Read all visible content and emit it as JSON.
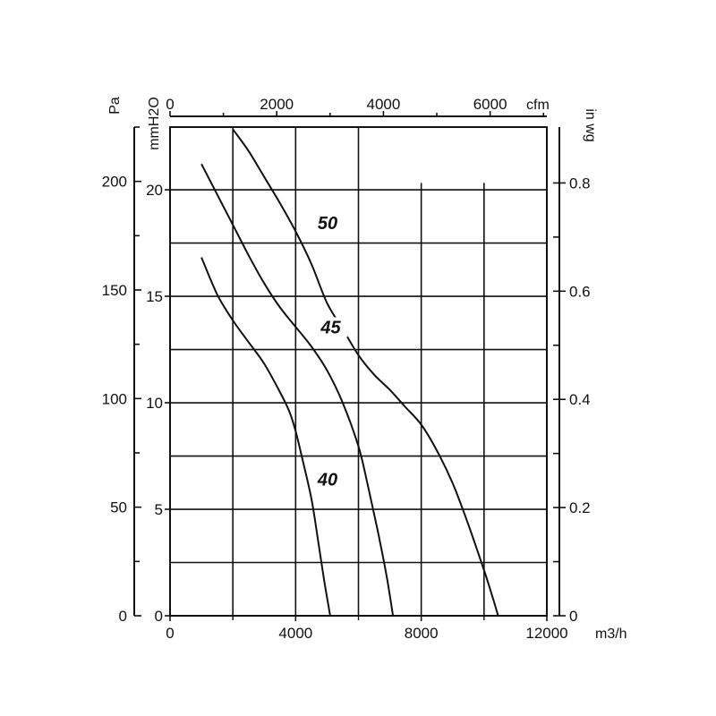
{
  "chart_data": {
    "type": "line",
    "title": "",
    "x_axis_bottom": {
      "unit": "m3/h",
      "range": [
        0,
        12000
      ],
      "ticks": [
        "0",
        "4000",
        "8000",
        "12000"
      ]
    },
    "x_axis_top": {
      "unit": "cfm",
      "range": [
        0,
        7063
      ],
      "ticks": [
        "0",
        "2000",
        "4000",
        "6000"
      ]
    },
    "y_axis_left_pa": {
      "unit": "Pa",
      "range": [
        0,
        225
      ],
      "ticks": [
        "0",
        "50",
        "100",
        "150",
        "200"
      ]
    },
    "y_axis_left_mmh2o": {
      "unit": "mmH2O",
      "range": [
        0,
        22.5
      ],
      "ticks": [
        "0",
        "5",
        "10",
        "15",
        "20"
      ]
    },
    "y_axis_right": {
      "unit": "in wg",
      "range": [
        0,
        0.9
      ],
      "ticks": [
        "0",
        "0.2",
        "0.4",
        "0.6",
        "0.8"
      ]
    },
    "grid": true,
    "series": [
      {
        "name": "40",
        "x": [
          1000,
          1500,
          2000,
          2500,
          3000,
          3500,
          3800,
          4000,
          4200,
          4500,
          4700,
          4900,
          5100
        ],
        "y": [
          165,
          148,
          136,
          126,
          116,
          103,
          94,
          85,
          73,
          54,
          36,
          17,
          0
        ]
      },
      {
        "name": "45",
        "x": [
          1000,
          1500,
          2000,
          2500,
          3000,
          3500,
          4000,
          4500,
          5000,
          5500,
          6000,
          6300,
          6600,
          6900,
          7100
        ],
        "y": [
          208,
          194,
          180,
          166,
          153,
          142,
          133,
          124,
          113,
          98,
          78,
          60,
          40,
          18,
          0
        ]
      },
      {
        "name": "50",
        "x": [
          2000,
          2500,
          3000,
          3500,
          4000,
          4500,
          5000,
          5500,
          6000,
          6500,
          7000,
          7500,
          8000,
          8500,
          9000,
          9500,
          10000,
          10200,
          10450
        ],
        "y": [
          224,
          214,
          202,
          190,
          177,
          162,
          144,
          132,
          120,
          111,
          104,
          96,
          88,
          76,
          61,
          42,
          21,
          12,
          0
        ]
      }
    ]
  }
}
